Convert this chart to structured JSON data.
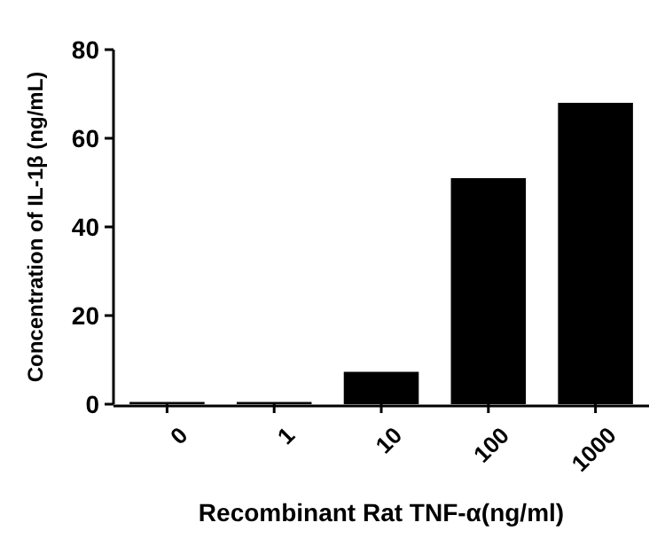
{
  "chart_data": {
    "type": "bar",
    "xlabel": "Recombinant Rat TNF-α(ng/ml)",
    "ylabel": "Concentration of IL-1β (ng/mL)",
    "categories": [
      "0",
      "1",
      "10",
      "100",
      "1000"
    ],
    "values": [
      0.5,
      0.5,
      7.3,
      51,
      68
    ],
    "color": "#000000",
    "ylim": [
      0,
      80
    ],
    "yticks": [
      0,
      20,
      40,
      60,
      80
    ]
  }
}
